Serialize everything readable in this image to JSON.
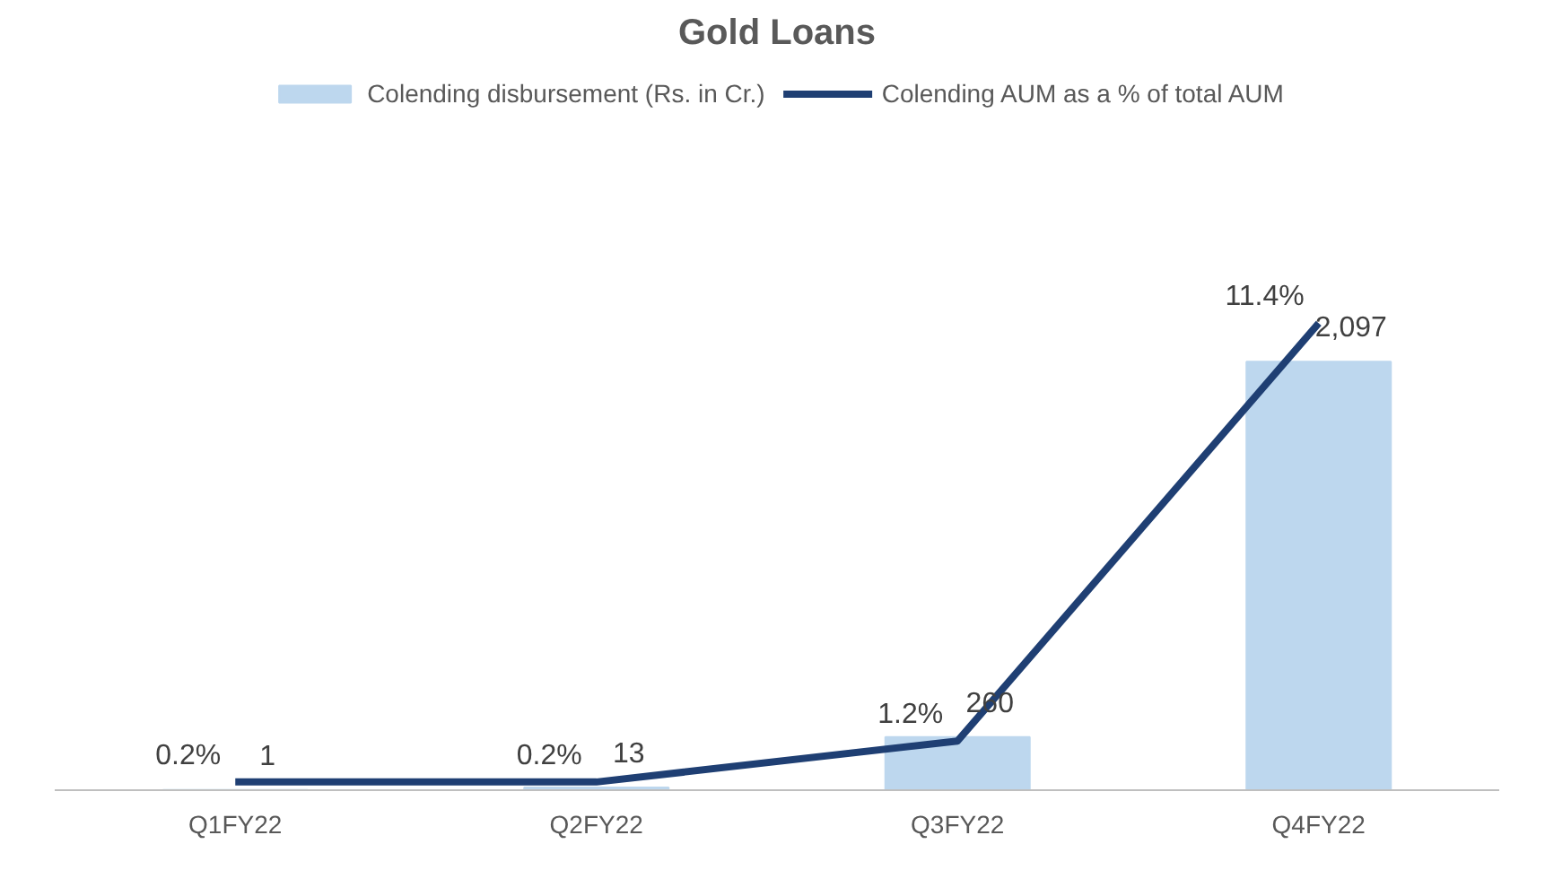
{
  "chart_data": {
    "type": "bar",
    "title": "Gold Loans",
    "categories": [
      "Q1FY22",
      "Q2FY22",
      "Q3FY22",
      "Q4FY22"
    ],
    "legend": "top",
    "series": [
      {
        "name": "Colending disbursement (Rs. in Cr.)",
        "color": "#bdd7ee",
        "values": [
          1,
          13,
          260,
          2097
        ],
        "value_labels": [
          "1",
          "13",
          "260",
          "2,097"
        ]
      },
      {
        "name": "Colending AUM as a % of total AUM",
        "type": "line",
        "axis": "y2",
        "color": "#1f3f73",
        "values": [
          0.2,
          0.2,
          1.2,
          11.4
        ],
        "value_labels": [
          "0.2%",
          "0.2%",
          "1.2%",
          "11.4%"
        ],
        "line_style": "solid"
      }
    ]
  }
}
